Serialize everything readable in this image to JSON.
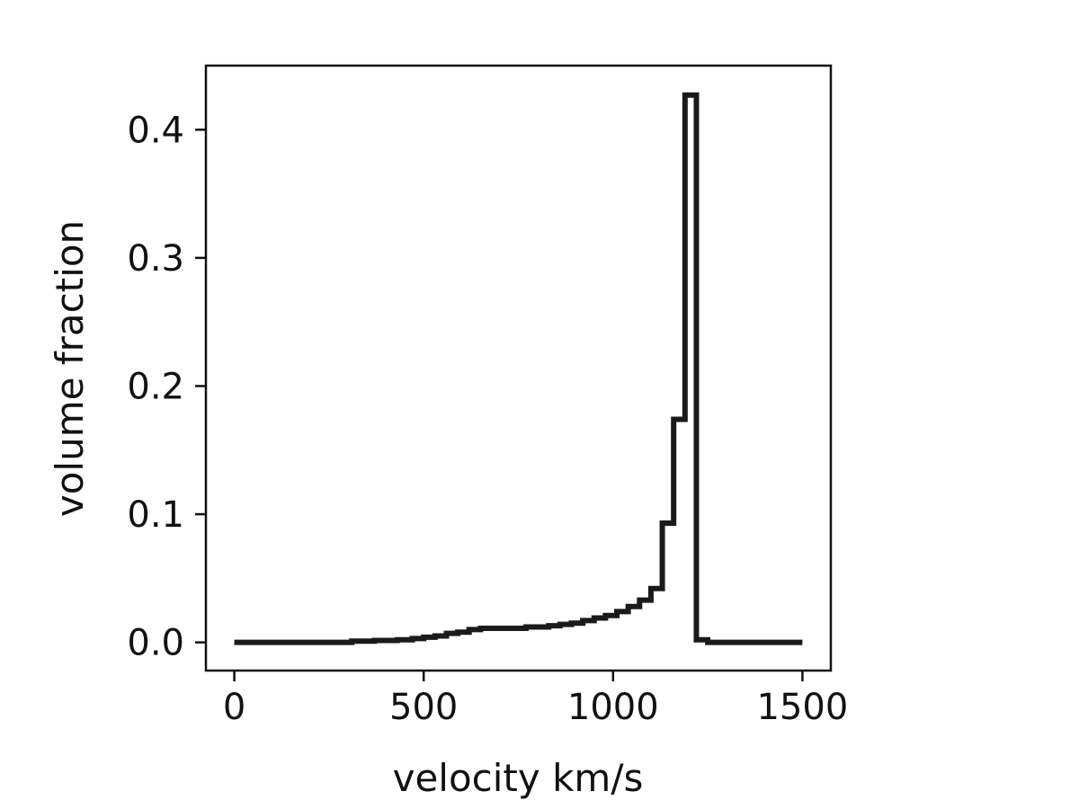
{
  "chart_data": {
    "type": "line",
    "step": "post",
    "title": "",
    "xlabel": "velocity km/s",
    "ylabel": "volume fraction",
    "xlim": [
      -75,
      1575
    ],
    "ylim": [
      -0.022,
      0.45
    ],
    "xticks": [
      0,
      500,
      1000,
      1500
    ],
    "xtick_labels": [
      "0",
      "500",
      "1000",
      "1500"
    ],
    "yticks": [
      0.0,
      0.1,
      0.2,
      0.3,
      0.4
    ],
    "ytick_labels": [
      "0.0",
      "0.1",
      "0.2",
      "0.3",
      "0.4"
    ],
    "grid": false,
    "line_color": "#1a1a1a",
    "series": [
      {
        "x": [
          0,
          310,
          370,
          430,
          470,
          500,
          530,
          560,
          590,
          620,
          650,
          680,
          710,
          740,
          770,
          800,
          830,
          860,
          890,
          920,
          950,
          980,
          1010,
          1040,
          1070,
          1100,
          1130,
          1160,
          1190,
          1220,
          1250,
          1500
        ],
        "values": [
          0.0,
          0.001,
          0.0015,
          0.002,
          0.003,
          0.004,
          0.005,
          0.007,
          0.008,
          0.01,
          0.011,
          0.011,
          0.011,
          0.011,
          0.012,
          0.012,
          0.013,
          0.014,
          0.015,
          0.017,
          0.019,
          0.021,
          0.024,
          0.028,
          0.033,
          0.042,
          0.093,
          0.174,
          0.427,
          0.002,
          0.0,
          0.0
        ]
      }
    ]
  }
}
